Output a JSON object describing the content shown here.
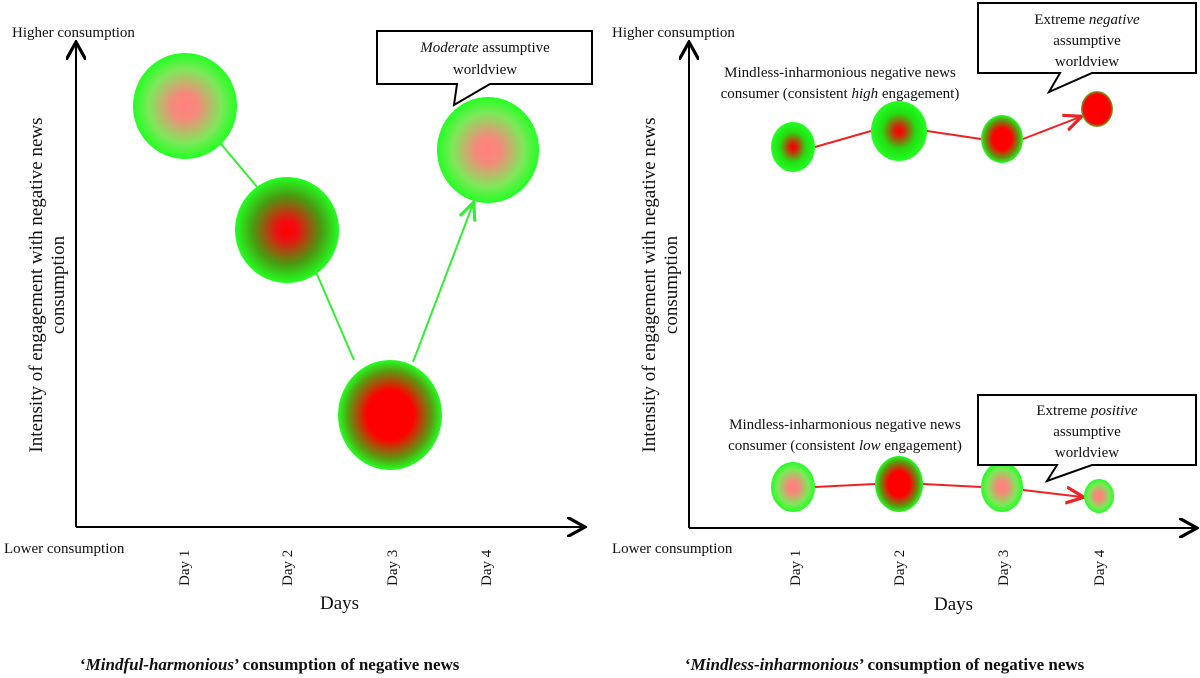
{
  "left_panel": {
    "higher_label": "Higher consumption",
    "lower_label": "Lower consumption",
    "y_axis_label_line1": "Intensity of engagement with negative news",
    "y_axis_label_line2": "consumption",
    "x_axis_label": "Days",
    "days": [
      "Day 1",
      "Day 2",
      "Day 3",
      "Day 4"
    ],
    "callout": {
      "italic": "Moderate",
      "rest": " assumptive",
      "line2": "worldview"
    },
    "caption": {
      "open": "‘",
      "italic": "Mindful-harmonious",
      "rest": "’ consumption of negative news"
    },
    "connector_color": "#33ee33"
  },
  "right_panel": {
    "higher_label": "Higher consumption",
    "lower_label": "Lower consumption",
    "y_axis_label_line1": "Intensity of engagement with negative news",
    "y_axis_label_line2": "consumption",
    "x_axis_label": "Days",
    "days": [
      "Day 1",
      "Day 2",
      "Day 3",
      "Day 4"
    ],
    "high_group": {
      "label_line1": "Mindless-inharmonious negative news",
      "label_line2_pre": "consumer (consistent ",
      "label_line2_italic": "high",
      "label_line2_post": " engagement)",
      "callout": {
        "line1_pre": "Extreme ",
        "line1_italic": "negative",
        "line2": "assumptive",
        "line3": "worldview"
      }
    },
    "low_group": {
      "label_line1": "Mindless-inharmonious negative news",
      "label_line2_pre": "consumer (consistent ",
      "label_line2_italic": "low",
      "label_line2_post": " engagement)",
      "callout": {
        "line1_pre": "Extreme ",
        "line1_italic": "positive",
        "line2": "assumptive",
        "line3": "worldview"
      }
    },
    "caption": {
      "open": "‘",
      "italic": "Mindless-inharmonious",
      "rest": "’ consumption of negative news"
    },
    "connector_color": "#ee2222"
  },
  "colors": {
    "green": "#22ff22",
    "red": "#ff0000",
    "pale_red": "#ff8080"
  }
}
